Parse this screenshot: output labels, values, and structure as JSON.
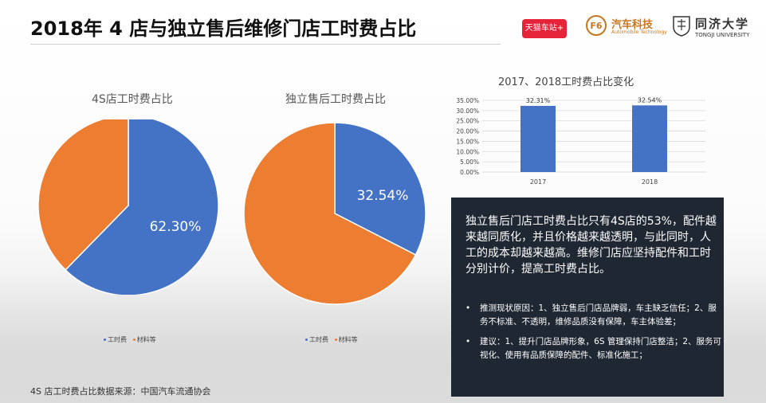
{
  "title": "2018年 4   店与独立售后维修门店工时费占比",
  "logos": {
    "tmall": "天猫车站+",
    "auto_name": "汽车科技",
    "auto_sub": "Automobile Technology",
    "tongji_name": "同济大学",
    "tongji_sub": "TONGJI UNIVERSITY"
  },
  "colors": {
    "blue": "#4472c4",
    "orange": "#ed7d31",
    "panel": "#1f2733"
  },
  "chart_data": [
    {
      "type": "pie",
      "title": "4S店工时费占比",
      "labels": [
        "工时费",
        "材料等"
      ],
      "values": [
        62.3,
        37.7
      ],
      "data_label": "62.30%",
      "legend_position": "bottom"
    },
    {
      "type": "pie",
      "title": "独立售后工时费占比",
      "labels": [
        "工时费",
        "材料等"
      ],
      "values": [
        32.54,
        67.46
      ],
      "data_label": "32.54%",
      "legend_position": "bottom"
    },
    {
      "type": "bar",
      "title": "2017、2018工时费占比变化",
      "categories": [
        "2017",
        "2018"
      ],
      "values": [
        32.31,
        32.54
      ],
      "value_labels": [
        "32.31%",
        "32.54%"
      ],
      "ylim": [
        0,
        35
      ],
      "yticks": [
        "0.00%",
        "5.00%",
        "10.00%",
        "15.00%",
        "20.00%",
        "25.00%",
        "30.00%",
        "35.00%"
      ],
      "grid": true
    }
  ],
  "panel": {
    "main": "独立售后门店工时费占比只有4S店的53%，配件越来越同质化，并且价格越来越透明，与此同时，人工的成本却越来越高。维修门店应坚持配件和工时分别计价，提高工时费占比。",
    "bullets": [
      "推测现状原因：1、独立售后门店品牌弱，车主缺乏信任；2、服务不标准、不透明，维修品质没有保障，车主体验差；",
      "建议：1、提升门店品牌形象，6S 管理保持门店整洁；2、服务可视化、使用有品质保障的配件、标准化施工；"
    ]
  },
  "source": "4S 店工时费占比数据来源：中国汽车流通协会"
}
